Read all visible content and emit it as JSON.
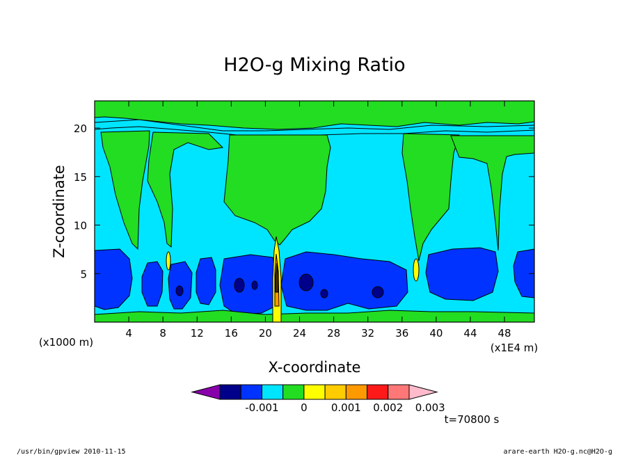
{
  "chart_data": {
    "type": "heatmap",
    "title": "H2O-g Mixing Ratio",
    "xlabel": "X-coordinate",
    "ylabel": "Z-coordinate",
    "x_unit_note": "(x1E4 m)",
    "z_unit_note": "(x1000 m)",
    "xlim": [
      0,
      51.5
    ],
    "ylim": [
      0,
      22.8
    ],
    "x_ticks": [
      4,
      8,
      12,
      16,
      20,
      24,
      28,
      32,
      36,
      40,
      44,
      48
    ],
    "y_ticks": [
      5,
      10,
      15,
      20
    ],
    "x_tick_labels": [
      "4",
      "8",
      "12",
      "16",
      "20",
      "24",
      "28",
      "32",
      "36",
      "40",
      "44",
      "48"
    ],
    "y_tick_labels": [
      "5",
      "10",
      "15",
      "20"
    ],
    "time_label": "t=70800 s",
    "colorbar": {
      "colors": [
        "#8800aa",
        "#00008b",
        "#0033ff",
        "#00e5ff",
        "#22dd22",
        "#ffff00",
        "#ffcc00",
        "#ff9900",
        "#ff1a1a",
        "#ff7777",
        "#ffbbcc"
      ],
      "labels": [
        "-0.001",
        "0",
        "0.001",
        "0.002",
        "0.003"
      ]
    },
    "regions": [
      {
        "level": "cyan (0 to 0.0005)",
        "description": "background across domain, z 0-22"
      },
      {
        "level": "green (0.0005 to 0.001)",
        "description": "upper band near z=20-22.8 and plumes at x~20-26 and x~36-38"
      },
      {
        "level": "blue (-0.0005 to 0)",
        "description": "lower layer z~1-7.5 with gaps"
      },
      {
        "level": "dark blue (< -0.0005)",
        "description": "small cores near x~17-19, 24-26, 33"
      },
      {
        "level": "yellow-red (> 0.001)",
        "description": "narrow spike at x~21, z 0-9"
      }
    ]
  },
  "footer": {
    "left": "/usr/bin/gpview  2010-11-15",
    "right": "arare-earth_H2O-g.nc@H2O-g"
  }
}
